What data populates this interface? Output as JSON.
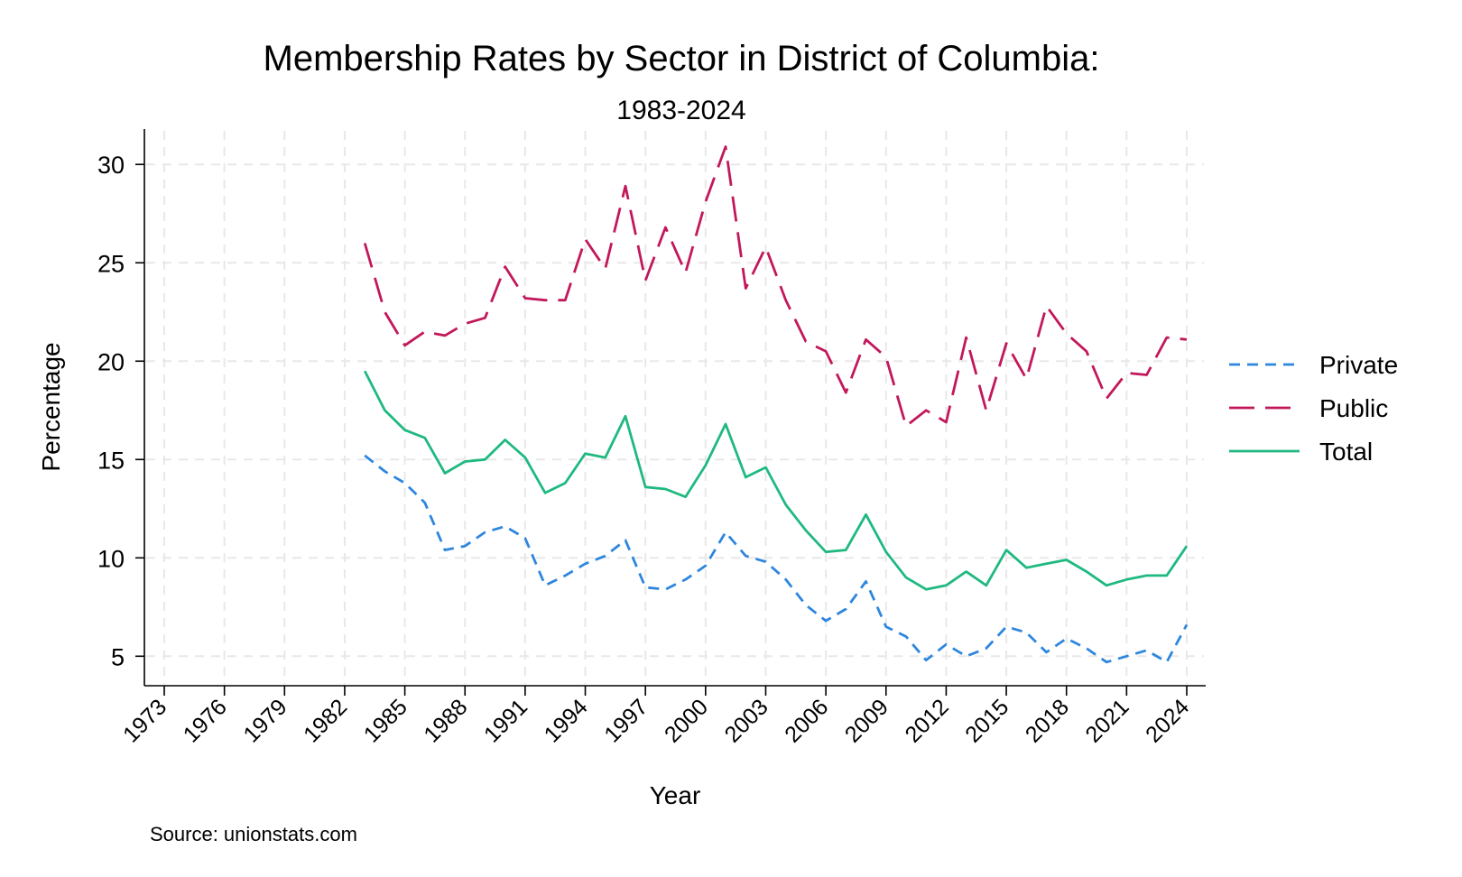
{
  "chart_data": {
    "type": "line",
    "title": "Membership Rates by Sector in District of Columbia:",
    "subtitle": "1983-2024",
    "xlabel": "Year",
    "ylabel": "Percentage",
    "note": "Source: unionstats.com",
    "xlim": [
      1973,
      2024
    ],
    "ylim": [
      3.5,
      31.8
    ],
    "x_ticks": [
      1973,
      1976,
      1979,
      1982,
      1985,
      1988,
      1991,
      1994,
      1997,
      2000,
      2003,
      2006,
      2009,
      2012,
      2015,
      2018,
      2021,
      2024
    ],
    "y_ticks": [
      5,
      10,
      15,
      20,
      25,
      30
    ],
    "grid": true,
    "legend_position": "right",
    "x": [
      1983,
      1984,
      1985,
      1986,
      1987,
      1988,
      1989,
      1990,
      1991,
      1992,
      1993,
      1994,
      1995,
      1996,
      1997,
      1998,
      1999,
      2000,
      2001,
      2002,
      2003,
      2004,
      2005,
      2006,
      2007,
      2008,
      2009,
      2010,
      2011,
      2012,
      2013,
      2014,
      2015,
      2016,
      2017,
      2018,
      2019,
      2020,
      2021,
      2022,
      2023,
      2024
    ],
    "series": [
      {
        "name": "Private",
        "color": "#2e86de",
        "dash": "12 8",
        "values": [
          15.2,
          14.4,
          13.8,
          12.8,
          10.4,
          10.6,
          11.3,
          11.6,
          11.0,
          8.6,
          9.1,
          9.7,
          10.1,
          10.9,
          8.5,
          8.4,
          8.9,
          9.6,
          11.3,
          10.1,
          9.8,
          8.9,
          7.6,
          6.8,
          7.4,
          8.8,
          6.5,
          6.0,
          4.8,
          5.6,
          5.0,
          5.4,
          6.5,
          6.2,
          5.2,
          5.9,
          5.4,
          4.7,
          5.0,
          5.3,
          4.7,
          6.6
        ]
      },
      {
        "name": "Public",
        "color": "#c2185b",
        "dash": "28 12",
        "values": [
          26.0,
          22.5,
          20.8,
          21.5,
          21.3,
          21.9,
          22.2,
          24.8,
          23.2,
          23.1,
          23.1,
          26.2,
          24.7,
          28.9,
          24.1,
          26.8,
          24.5,
          28.1,
          30.9,
          23.7,
          25.8,
          23.1,
          21.0,
          20.5,
          18.4,
          21.1,
          20.2,
          16.7,
          17.5,
          16.9,
          21.2,
          17.5,
          20.9,
          19.1,
          22.8,
          21.4,
          20.5,
          18.1,
          19.4,
          19.3,
          21.2,
          21.1
        ]
      },
      {
        "name": "Total",
        "color": "#1fb980",
        "dash": "",
        "values": [
          19.5,
          17.5,
          16.5,
          16.1,
          14.3,
          14.9,
          15.0,
          16.0,
          15.1,
          13.3,
          13.8,
          15.3,
          15.1,
          17.2,
          13.6,
          13.5,
          13.1,
          14.7,
          16.8,
          14.1,
          14.6,
          12.7,
          11.4,
          10.3,
          10.4,
          12.2,
          10.3,
          9.0,
          8.4,
          8.6,
          9.3,
          8.6,
          10.4,
          9.5,
          9.7,
          9.9,
          9.3,
          8.6,
          8.9,
          9.1,
          9.1,
          10.6
        ]
      }
    ]
  }
}
